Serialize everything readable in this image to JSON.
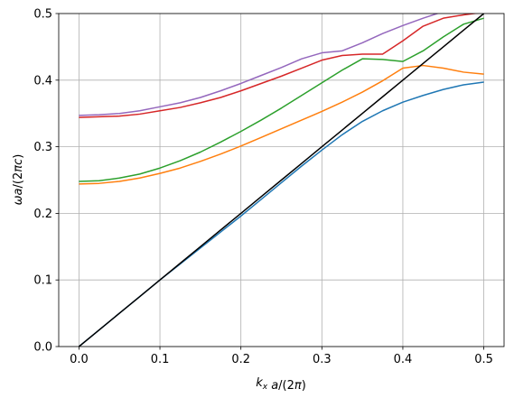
{
  "chart_data": {
    "type": "line",
    "title": "",
    "xlabel": "k_x a/(2π)",
    "ylabel": "ωa/(2πc)",
    "xlim": [
      -0.025,
      0.525
    ],
    "ylim": [
      0,
      0.5
    ],
    "xticks": [
      "0.0",
      "0.1",
      "0.2",
      "0.3",
      "0.4",
      "0.5"
    ],
    "yticks": [
      "0.0",
      "0.1",
      "0.2",
      "0.3",
      "0.4",
      "0.5"
    ],
    "grid": true,
    "legend": "none",
    "x": [
      0.0,
      0.025,
      0.05,
      0.075,
      0.1,
      0.125,
      0.15,
      0.175,
      0.2,
      0.225,
      0.25,
      0.275,
      0.3,
      0.325,
      0.35,
      0.375,
      0.4,
      0.425,
      0.45,
      0.475,
      0.5
    ],
    "series": [
      {
        "color": "#1f77b4",
        "values": [
          0.0,
          0.025,
          0.05,
          0.075,
          0.1,
          0.124,
          0.148,
          0.172,
          0.196,
          0.221,
          0.246,
          0.271,
          0.295,
          0.318,
          0.338,
          0.354,
          0.367,
          0.377,
          0.386,
          0.393,
          0.397
        ]
      },
      {
        "color": "#ff7f0e",
        "values": [
          0.244,
          0.245,
          0.248,
          0.253,
          0.26,
          0.268,
          0.278,
          0.289,
          0.301,
          0.314,
          0.327,
          0.34,
          0.353,
          0.367,
          0.382,
          0.399,
          0.418,
          0.422,
          0.418,
          0.412,
          0.409
        ]
      },
      {
        "color": "#2ca02c",
        "values": [
          0.248,
          0.249,
          0.253,
          0.259,
          0.268,
          0.279,
          0.292,
          0.307,
          0.323,
          0.34,
          0.358,
          0.377,
          0.396,
          0.415,
          0.432,
          0.431,
          0.428,
          0.444,
          0.465,
          0.484,
          0.493
        ]
      },
      {
        "color": "#d62728",
        "values": [
          0.344,
          0.345,
          0.346,
          0.349,
          0.354,
          0.359,
          0.366,
          0.374,
          0.384,
          0.395,
          0.406,
          0.418,
          0.43,
          0.437,
          0.439,
          0.439,
          0.459,
          0.481,
          0.493,
          0.498,
          0.502
        ]
      },
      {
        "color": "#9467bd",
        "values": [
          0.347,
          0.348,
          0.35,
          0.354,
          0.36,
          0.366,
          0.374,
          0.384,
          0.395,
          0.407,
          0.419,
          0.432,
          0.441,
          0.444,
          0.456,
          0.47,
          0.482,
          0.493,
          0.503,
          0.51,
          0.515
        ]
      },
      {
        "color": "#000000",
        "values": [
          0.0,
          0.025,
          0.05,
          0.075,
          0.1,
          0.125,
          0.15,
          0.175,
          0.2,
          0.225,
          0.25,
          0.275,
          0.3,
          0.325,
          0.35,
          0.375,
          0.4,
          0.425,
          0.45,
          0.475,
          0.5
        ]
      }
    ]
  }
}
